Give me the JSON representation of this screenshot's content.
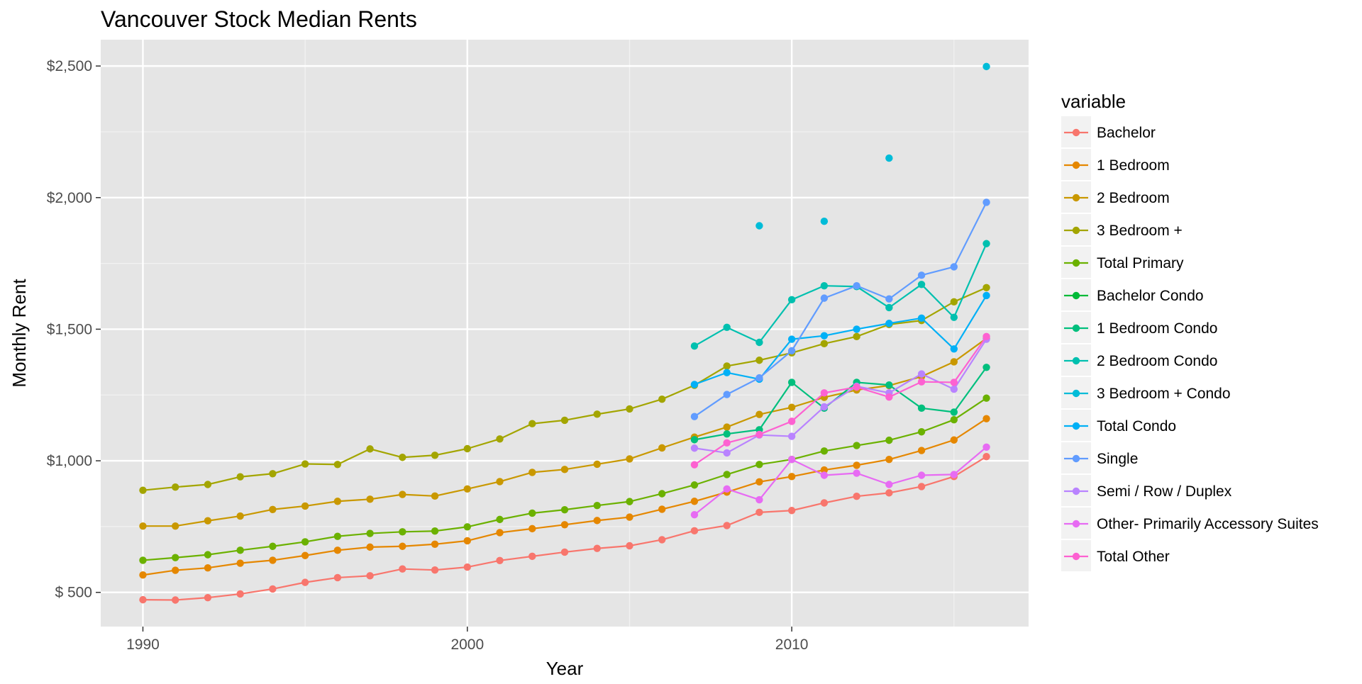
{
  "chart_data": {
    "type": "line",
    "title": "Vancouver Stock Median Rents",
    "xlabel": "Year",
    "ylabel": "Monthly Rent",
    "xlim": [
      1988.7,
      2017.3
    ],
    "ylim": [
      370,
      2600
    ],
    "x_ticks": [
      1990,
      2000,
      2010
    ],
    "x_tick_labels": [
      "1990",
      "2000",
      "2010"
    ],
    "y_ticks": [
      500,
      1000,
      1500,
      2000,
      2500
    ],
    "y_tick_labels": [
      "$  500",
      "$1,000",
      "$1,500",
      "$2,000",
      "$2,500"
    ],
    "grid": true,
    "legend": {
      "title": "variable",
      "position": "right"
    },
    "series": [
      {
        "name": "Bachelor",
        "color": "#F8766D",
        "points": [
          [
            1990,
            472
          ],
          [
            1991,
            471
          ],
          [
            1992,
            480
          ],
          [
            1993,
            494
          ],
          [
            1994,
            513
          ],
          [
            1995,
            538
          ],
          [
            1996,
            556
          ],
          [
            1997,
            563
          ],
          [
            1998,
            589
          ],
          [
            1999,
            585
          ],
          [
            2000,
            596
          ],
          [
            2001,
            621
          ],
          [
            2002,
            637
          ],
          [
            2003,
            653
          ],
          [
            2004,
            667
          ],
          [
            2005,
            677
          ],
          [
            2006,
            700
          ],
          [
            2007,
            734
          ],
          [
            2008,
            754
          ],
          [
            2009,
            804
          ],
          [
            2010,
            811
          ],
          [
            2011,
            840
          ],
          [
            2012,
            865
          ],
          [
            2013,
            878
          ],
          [
            2014,
            902
          ],
          [
            2015,
            940
          ],
          [
            2016,
            1016
          ]
        ]
      },
      {
        "name": "1 Bedroom",
        "color": "#E58700",
        "points": [
          [
            1990,
            566
          ],
          [
            1991,
            584
          ],
          [
            1992,
            593
          ],
          [
            1993,
            611
          ],
          [
            1994,
            622
          ],
          [
            1995,
            640
          ],
          [
            1996,
            660
          ],
          [
            1997,
            672
          ],
          [
            1998,
            675
          ],
          [
            1999,
            683
          ],
          [
            2000,
            696
          ],
          [
            2001,
            727
          ],
          [
            2002,
            742
          ],
          [
            2003,
            757
          ],
          [
            2004,
            773
          ],
          [
            2005,
            786
          ],
          [
            2006,
            816
          ],
          [
            2007,
            846
          ],
          [
            2008,
            881
          ],
          [
            2009,
            920
          ],
          [
            2010,
            940
          ],
          [
            2011,
            965
          ],
          [
            2012,
            983
          ],
          [
            2013,
            1005
          ],
          [
            2014,
            1039
          ],
          [
            2015,
            1079
          ],
          [
            2016,
            1160
          ]
        ]
      },
      {
        "name": "2 Bedroom",
        "color": "#C99800",
        "points": [
          [
            1990,
            752
          ],
          [
            1991,
            752
          ],
          [
            1992,
            772
          ],
          [
            1993,
            790
          ],
          [
            1994,
            815
          ],
          [
            1995,
            828
          ],
          [
            1996,
            846
          ],
          [
            1997,
            854
          ],
          [
            1998,
            872
          ],
          [
            1999,
            866
          ],
          [
            2000,
            893
          ],
          [
            2001,
            921
          ],
          [
            2002,
            956
          ],
          [
            2003,
            967
          ],
          [
            2004,
            987
          ],
          [
            2005,
            1007
          ],
          [
            2006,
            1049
          ],
          [
            2007,
            1090
          ],
          [
            2008,
            1128
          ],
          [
            2009,
            1176
          ],
          [
            2010,
            1203
          ],
          [
            2011,
            1241
          ],
          [
            2012,
            1269
          ],
          [
            2013,
            1286
          ],
          [
            2014,
            1320
          ],
          [
            2015,
            1376
          ],
          [
            2016,
            1465
          ]
        ]
      },
      {
        "name": "3 Bedroom +",
        "color": "#A3A500",
        "points": [
          [
            1990,
            888
          ],
          [
            1991,
            900
          ],
          [
            1992,
            910
          ],
          [
            1993,
            939
          ],
          [
            1994,
            951
          ],
          [
            1995,
            988
          ],
          [
            1996,
            986
          ],
          [
            1997,
            1045
          ],
          [
            1998,
            1013
          ],
          [
            1999,
            1021
          ],
          [
            2000,
            1046
          ],
          [
            2001,
            1083
          ],
          [
            2002,
            1141
          ],
          [
            2003,
            1154
          ],
          [
            2004,
            1177
          ],
          [
            2005,
            1197
          ],
          [
            2006,
            1234
          ],
          [
            2007,
            1287
          ],
          [
            2008,
            1360
          ],
          [
            2009,
            1382
          ],
          [
            2010,
            1410
          ],
          [
            2011,
            1445
          ],
          [
            2012,
            1472
          ],
          [
            2013,
            1518
          ],
          [
            2014,
            1533
          ],
          [
            2015,
            1604
          ],
          [
            2016,
            1658
          ]
        ]
      },
      {
        "name": "Total Primary",
        "color": "#6BB100",
        "points": [
          [
            1990,
            622
          ],
          [
            1991,
            632
          ],
          [
            1992,
            643
          ],
          [
            1993,
            660
          ],
          [
            1994,
            675
          ],
          [
            1995,
            692
          ],
          [
            1996,
            713
          ],
          [
            1997,
            724
          ],
          [
            1998,
            730
          ],
          [
            1999,
            733
          ],
          [
            2000,
            749
          ],
          [
            2001,
            777
          ],
          [
            2002,
            801
          ],
          [
            2003,
            814
          ],
          [
            2004,
            830
          ],
          [
            2005,
            845
          ],
          [
            2006,
            875
          ],
          [
            2007,
            908
          ],
          [
            2008,
            948
          ],
          [
            2009,
            986
          ],
          [
            2010,
            1005
          ],
          [
            2011,
            1037
          ],
          [
            2012,
            1058
          ],
          [
            2013,
            1078
          ],
          [
            2014,
            1110
          ],
          [
            2015,
            1156
          ],
          [
            2016,
            1238
          ]
        ]
      },
      {
        "name": "Bachelor Condo",
        "color": "#00BA38",
        "points": []
      },
      {
        "name": "1 Bedroom Condo",
        "color": "#00BF7D",
        "points": [
          [
            2007,
            1080
          ],
          [
            2008,
            1102
          ],
          [
            2009,
            1118
          ],
          [
            2010,
            1298
          ],
          [
            2011,
            1200
          ],
          [
            2012,
            1298
          ],
          [
            2013,
            1288
          ],
          [
            2014,
            1200
          ],
          [
            2015,
            1185
          ],
          [
            2016,
            1355
          ]
        ]
      },
      {
        "name": "2 Bedroom Condo",
        "color": "#00C0AF",
        "points": [
          [
            2007,
            1436
          ],
          [
            2008,
            1507
          ],
          [
            2009,
            1450
          ],
          [
            2010,
            1612
          ],
          [
            2011,
            1665
          ],
          [
            2012,
            1662
          ],
          [
            2013,
            1582
          ],
          [
            2014,
            1670
          ],
          [
            2015,
            1545
          ],
          [
            2016,
            1825
          ]
        ]
      },
      {
        "name": "3 Bedroom + Condo",
        "color": "#00BCD8",
        "points": [
          [
            2009,
            1893
          ],
          [
            2011,
            1910
          ],
          [
            2013,
            2150
          ],
          [
            2016,
            2498
          ]
        ]
      },
      {
        "name": "Total Condo",
        "color": "#00B0F6",
        "points": [
          [
            2007,
            1290
          ],
          [
            2008,
            1335
          ],
          [
            2009,
            1310
          ],
          [
            2010,
            1462
          ],
          [
            2011,
            1475
          ],
          [
            2012,
            1500
          ],
          [
            2013,
            1522
          ],
          [
            2014,
            1542
          ],
          [
            2015,
            1425
          ],
          [
            2016,
            1628
          ]
        ]
      },
      {
        "name": "Single",
        "color": "#619CFF",
        "points": [
          [
            2007,
            1168
          ],
          [
            2008,
            1252
          ],
          [
            2009,
            1315
          ],
          [
            2010,
            1418
          ],
          [
            2011,
            1618
          ],
          [
            2012,
            1665
          ],
          [
            2013,
            1615
          ],
          [
            2014,
            1705
          ],
          [
            2015,
            1737
          ],
          [
            2016,
            1982
          ]
        ]
      },
      {
        "name": "Semi / Row / Duplex",
        "color": "#B983FF",
        "points": [
          [
            2007,
            1048
          ],
          [
            2008,
            1030
          ],
          [
            2009,
            1098
          ],
          [
            2010,
            1093
          ],
          [
            2011,
            1205
          ],
          [
            2012,
            1283
          ],
          [
            2013,
            1258
          ],
          [
            2014,
            1330
          ],
          [
            2015,
            1272
          ],
          [
            2016,
            1462
          ]
        ]
      },
      {
        "name": "Other- Primarily Accessory Suites",
        "color": "#E76BF3",
        "points": [
          [
            2007,
            795
          ],
          [
            2008,
            893
          ],
          [
            2009,
            852
          ],
          [
            2010,
            1005
          ],
          [
            2011,
            945
          ],
          [
            2012,
            953
          ],
          [
            2013,
            910
          ],
          [
            2014,
            945
          ],
          [
            2015,
            948
          ],
          [
            2016,
            1052
          ]
        ]
      },
      {
        "name": "Total Other",
        "color": "#FD61D1",
        "points": [
          [
            2007,
            985
          ],
          [
            2008,
            1068
          ],
          [
            2009,
            1100
          ],
          [
            2010,
            1150
          ],
          [
            2011,
            1258
          ],
          [
            2012,
            1280
          ],
          [
            2013,
            1242
          ],
          [
            2014,
            1300
          ],
          [
            2015,
            1298
          ],
          [
            2016,
            1472
          ]
        ]
      }
    ]
  }
}
